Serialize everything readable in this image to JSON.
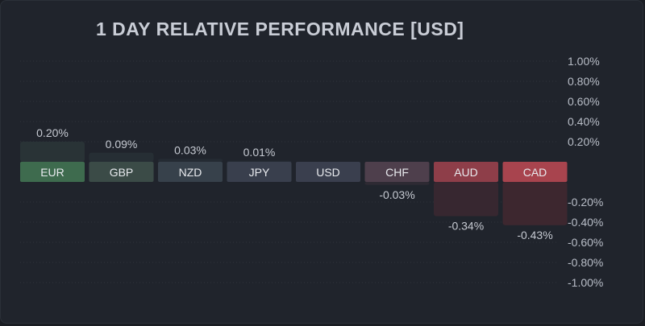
{
  "title": "1 DAY RELATIVE PERFORMANCE  [USD]",
  "chart_data": {
    "type": "bar",
    "title": "1 DAY RELATIVE PERFORMANCE  [USD]",
    "xlabel": "",
    "ylabel": "",
    "ylim": [
      -1.0,
      1.0
    ],
    "grid": true,
    "categories": [
      "EUR",
      "GBP",
      "NZD",
      "JPY",
      "USD",
      "CHF",
      "AUD",
      "CAD"
    ],
    "values": [
      0.2,
      0.09,
      0.03,
      0.01,
      0.0,
      -0.03,
      -0.34,
      -0.43
    ],
    "value_labels": [
      "0.20%",
      "0.09%",
      "0.03%",
      "0.01%",
      "",
      "-0.03%",
      "-0.34%",
      "-0.43%"
    ],
    "yticks_positive": [
      "1.00%",
      "0.80%",
      "0.60%",
      "0.40%",
      "0.20%"
    ],
    "yticks_negative": [
      "-0.20%",
      "-0.40%",
      "-0.60%",
      "-0.80%",
      "-1.00%"
    ],
    "label_colors": [
      "#3e6b4e",
      "#3b4b47",
      "#37414b",
      "#393f4d",
      "#3a3f4e",
      "#4e3f4c",
      "#8e3e49",
      "#a8444e"
    ],
    "bar_colors": [
      "#293336",
      "#262e34",
      "#242b33",
      "#242a33",
      "#242a33",
      "#2e2a33",
      "#372730",
      "#3d272f"
    ]
  }
}
